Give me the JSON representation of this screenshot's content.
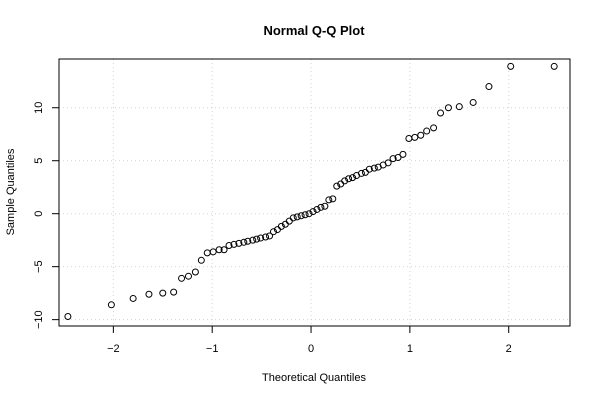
{
  "chart_data": {
    "type": "scatter",
    "title": "Normal Q-Q Plot",
    "xlabel": "Theoretical Quantiles",
    "ylabel": "Sample Quantiles",
    "xlim": [
      -2.55,
      2.62
    ],
    "ylim": [
      -10.6,
      14.6
    ],
    "xticks": [
      -2,
      -1,
      0,
      1,
      2
    ],
    "yticks": [
      -10,
      -5,
      0,
      5,
      10
    ],
    "xtick_labels": [
      "−2",
      "−1",
      "0",
      "1",
      "2"
    ],
    "ytick_labels": [
      "−10",
      "−5",
      "0",
      "5",
      "10"
    ],
    "grid": true,
    "series": [
      {
        "x": [
          -2.46,
          -2.02,
          -1.8,
          -1.64,
          -1.5,
          -1.39,
          -1.31,
          -1.24,
          -1.17,
          -1.11,
          -1.05,
          -0.99,
          -0.93,
          -0.88,
          -0.83,
          -0.78,
          -0.73,
          -0.68,
          -0.64,
          -0.59,
          -0.55,
          -0.51,
          -0.46,
          -0.42,
          -0.38,
          -0.34,
          -0.3,
          -0.26,
          -0.22,
          -0.18,
          -0.14,
          -0.1,
          -0.06,
          -0.02,
          0.02,
          0.06,
          0.1,
          0.14,
          0.18,
          0.22,
          0.26,
          0.3,
          0.34,
          0.38,
          0.42,
          0.46,
          0.51,
          0.55,
          0.59,
          0.64,
          0.68,
          0.73,
          0.78,
          0.83,
          0.88,
          0.93,
          0.99,
          1.05,
          1.11,
          1.17,
          1.24,
          1.31,
          1.39,
          1.5,
          1.64,
          1.8,
          2.02,
          2.46
        ],
        "y": [
          -9.7,
          -8.6,
          -8.0,
          -7.6,
          -7.5,
          -7.4,
          -6.1,
          -5.9,
          -5.5,
          -4.4,
          -3.7,
          -3.6,
          -3.4,
          -3.4,
          -3.0,
          -2.9,
          -2.8,
          -2.7,
          -2.6,
          -2.5,
          -2.4,
          -2.3,
          -2.2,
          -2.1,
          -1.7,
          -1.5,
          -1.2,
          -1.0,
          -0.7,
          -0.4,
          -0.3,
          -0.2,
          -0.1,
          0.0,
          0.2,
          0.4,
          0.6,
          0.7,
          1.3,
          1.4,
          2.6,
          2.8,
          3.1,
          3.3,
          3.4,
          3.6,
          3.8,
          3.9,
          4.2,
          4.3,
          4.4,
          4.6,
          4.8,
          5.2,
          5.3,
          5.6,
          7.1,
          7.2,
          7.4,
          7.8,
          8.1,
          9.5,
          10.0,
          10.1,
          10.5,
          12.0,
          13.9,
          13.9
        ]
      }
    ]
  }
}
